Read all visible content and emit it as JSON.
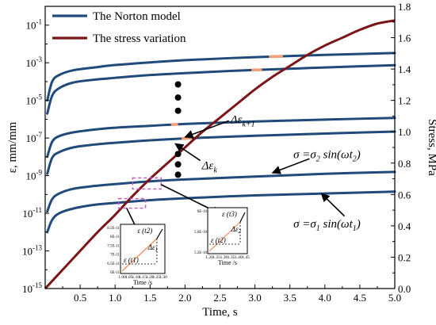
{
  "chart_data": {
    "type": "line",
    "title": "",
    "xlabel": "Time, s",
    "ylabel_left": "ε, mm/mm",
    "ylabel_right": "Stress, MPa",
    "xlim": [
      0,
      5
    ],
    "ylim_left_log10": [
      -15,
      0
    ],
    "ylim_right": [
      0,
      1.8
    ],
    "left_scale": "log",
    "x_ticks": [
      "0.5",
      "1.0",
      "1.5",
      "2.0",
      "2.5",
      "3.0",
      "3.5",
      "4.0",
      "4.5",
      "5.0"
    ],
    "x_tick_values": [
      0.5,
      1.0,
      1.5,
      2.0,
      2.5,
      3.0,
      3.5,
      4.0,
      4.5,
      5.0
    ],
    "left_ticks": [
      {
        "exp": -15,
        "label": "10",
        "sup": "-15"
      },
      {
        "exp": -13,
        "label": "10",
        "sup": "-13"
      },
      {
        "exp": -11,
        "label": "10",
        "sup": "-11"
      },
      {
        "exp": -9,
        "label": "10",
        "sup": "-9"
      },
      {
        "exp": -7,
        "label": "10",
        "sup": "-7"
      },
      {
        "exp": -5,
        "label": "10",
        "sup": "-5"
      },
      {
        "exp": -3,
        "label": "10",
        "sup": "-3"
      },
      {
        "exp": -1,
        "label": "10",
        "sup": "-1"
      }
    ],
    "right_ticks": [
      "0.0",
      "0.2",
      "0.4",
      "0.6",
      "0.8",
      "1.0",
      "1.2",
      "1.4",
      "1.6",
      "1.8"
    ],
    "right_tick_values": [
      0.0,
      0.2,
      0.4,
      0.6,
      0.8,
      1.0,
      1.2,
      1.4,
      1.6,
      1.8
    ],
    "legend": {
      "placement": "top-left",
      "entries": [
        {
          "name": "The Norton model",
          "color": "#1f4a7a"
        },
        {
          "name": "The stress variation",
          "color": "#7a1518"
        }
      ]
    },
    "series": [
      {
        "name": "The Norton model",
        "axis": "left",
        "color": "#1f4a7a",
        "curves": [
          {
            "x": [
              0.03,
              0.1,
              0.2,
              0.4,
              0.7,
              1.0,
              1.5,
              2.0,
              3.0,
              4.0,
              5.0
            ],
            "log10_y": [
              -12.0,
              -11.35,
              -11.0,
              -10.75,
              -10.55,
              -10.45,
              -10.3,
              -10.2,
              -10.05,
              -9.95,
              -9.85
            ]
          },
          {
            "x": [
              0.03,
              0.1,
              0.2,
              0.4,
              0.7,
              1.0,
              1.5,
              2.0,
              3.0,
              4.0,
              5.0
            ],
            "log10_y": [
              -10.9,
              -10.25,
              -9.95,
              -9.7,
              -9.55,
              -9.45,
              -9.3,
              -9.2,
              -9.05,
              -8.9,
              -8.8
            ]
          },
          {
            "x": [
              0.03,
              0.1,
              0.2,
              0.4,
              0.7,
              1.0,
              1.5,
              2.0,
              3.0,
              4.0,
              5.0
            ],
            "log10_y": [
              -8.9,
              -8.05,
              -7.75,
              -7.5,
              -7.35,
              -7.25,
              -7.12,
              -7.02,
              -6.88,
              -6.76,
              -6.66
            ]
          },
          {
            "x": [
              0.03,
              0.1,
              0.2,
              0.4,
              0.7,
              1.0,
              1.5,
              2.0,
              3.0,
              4.0,
              5.0
            ],
            "log10_y": [
              -8.0,
              -7.2,
              -6.9,
              -6.7,
              -6.55,
              -6.45,
              -6.35,
              -6.25,
              -6.12,
              -6.02,
              -5.93
            ]
          },
          {
            "x": [
              0.03,
              0.1,
              0.2,
              0.4,
              0.7,
              1.0,
              1.5,
              2.0,
              3.0,
              4.0,
              5.0
            ],
            "log10_y": [
              -5.7,
              -4.75,
              -4.35,
              -4.05,
              -3.9,
              -3.8,
              -3.65,
              -3.55,
              -3.38,
              -3.25,
              -3.13
            ]
          },
          {
            "x": [
              0.03,
              0.1,
              0.2,
              0.4,
              0.7,
              1.0,
              1.5,
              2.0,
              3.0,
              4.0,
              5.0
            ],
            "log10_y": [
              -5.0,
              -4.0,
              -3.65,
              -3.4,
              -3.25,
              -3.12,
              -2.98,
              -2.86,
              -2.7,
              -2.58,
              -2.48
            ]
          }
        ]
      },
      {
        "name": "The stress variation",
        "axis": "right",
        "color": "#7a1518",
        "x": [
          0.0,
          0.25,
          0.5,
          0.75,
          1.0,
          1.25,
          1.5,
          1.75,
          2.0,
          2.25,
          2.5,
          2.75,
          3.0,
          3.25,
          3.5,
          3.75,
          4.0,
          4.25,
          4.5,
          4.75,
          5.0
        ],
        "y": [
          0.0,
          0.12,
          0.24,
          0.36,
          0.47,
          0.59,
          0.7,
          0.8,
          0.9,
          1.0,
          1.09,
          1.18,
          1.27,
          1.35,
          1.42,
          1.49,
          1.55,
          1.6,
          1.65,
          1.69,
          1.71
        ]
      }
    ],
    "highlights": [
      {
        "x_start": 1.95,
        "x_end": 2.1,
        "curve_index": 2,
        "color": "#f0a07a"
      },
      {
        "x_start": 1.8,
        "x_end": 1.9,
        "curve_index": 3,
        "color": "#f0a07a"
      },
      {
        "x_start": 2.95,
        "x_end": 3.1,
        "curve_index": 4,
        "color": "#f0a07a"
      },
      {
        "x_start": 3.2,
        "x_end": 3.4,
        "curve_index": 5,
        "color": "#f0a07a"
      }
    ],
    "dot_groups": [
      {
        "x": 1.9,
        "log10_y": [
          -4.15,
          -4.85,
          -5.55
        ]
      },
      {
        "x": 1.9,
        "log10_y": [
          -7.85,
          -8.4,
          -8.95
        ]
      }
    ],
    "annotations": [
      {
        "text_main": "Δε",
        "text_sub": "k+1",
        "x": 2.65,
        "log10_y": -6.0
      },
      {
        "text_main": "Δε",
        "text_sub": "k",
        "x": 2.15,
        "log10_y": -8.45
      },
      {
        "text_main": "σ =σ",
        "text_sub": "2",
        "text_tail": " sin(ωt",
        "text_tail_sub": "2",
        "text_end": ")",
        "x": 3.55,
        "log10_y": -7.85
      },
      {
        "text_main": "σ =σ",
        "text_sub": "1",
        "text_tail": " sin(ωt",
        "text_tail_sub": "1",
        "text_end": ")",
        "x": 3.55,
        "log10_y": -11.55
      }
    ],
    "insets": [
      {
        "x_ticks": [
          "1.00",
          "1.05",
          "1.10",
          "1.15",
          "1.20",
          "1.25",
          "1.30"
        ],
        "y_ticks": [
          "6E-11",
          "6.5E-11",
          "7E-11",
          "7.5E-11",
          "8E-11",
          "8.5E-11"
        ],
        "xlabel": "Time /s",
        "label_top": "ε (t",
        "label_top_sub": "2",
        "label_top_end": ")",
        "label_bottom": "ε (t",
        "label_bottom_sub": "1",
        "label_bottom_end": ")",
        "label_delta": "Δε",
        "label_delta_sub": "1"
      },
      {
        "x_ticks": [
          "1.20",
          "1.25",
          "1.30",
          "1.35",
          "1.40",
          "1.45"
        ],
        "y_ticks": [
          "5.2E-10",
          "5.6E-10",
          "6E-10"
        ],
        "xlabel": "Time /s",
        "label_top": "ε (t",
        "label_top_sub": "3",
        "label_top_end": ")",
        "label_bottom": "ε (t",
        "label_bottom_sub": "2",
        "label_bottom_end": ")",
        "label_delta": "Δε",
        "label_delta_sub": "2"
      }
    ]
  }
}
